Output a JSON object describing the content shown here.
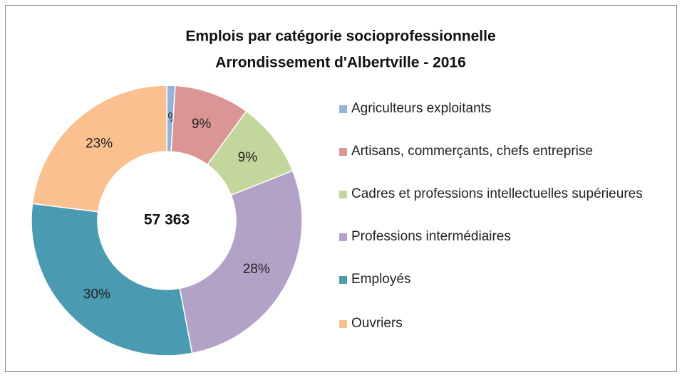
{
  "chart_data": {
    "type": "donut",
    "title": "Emplois par catégorie socioprofessionnelle",
    "subtitle": "Arrondissement d'Albertville - 2016",
    "total_label": "57 363",
    "categories": [
      "Agriculteurs exploitants",
      "Artisans, commerçants, chefs entreprise",
      "Cadres et professions intellectuelles supérieures",
      "Professions intermédiaires",
      "Employés",
      "Ouvriers"
    ],
    "values": [
      1,
      9,
      9,
      28,
      30,
      23
    ],
    "value_labels": [
      "1%",
      "9%",
      "9%",
      "28%",
      "30%",
      "23%"
    ],
    "colors": [
      "#95b3d7",
      "#d99694",
      "#c3d69b",
      "#b3a2c7",
      "#4a9bb1",
      "#fac090"
    ],
    "legend": "right"
  }
}
